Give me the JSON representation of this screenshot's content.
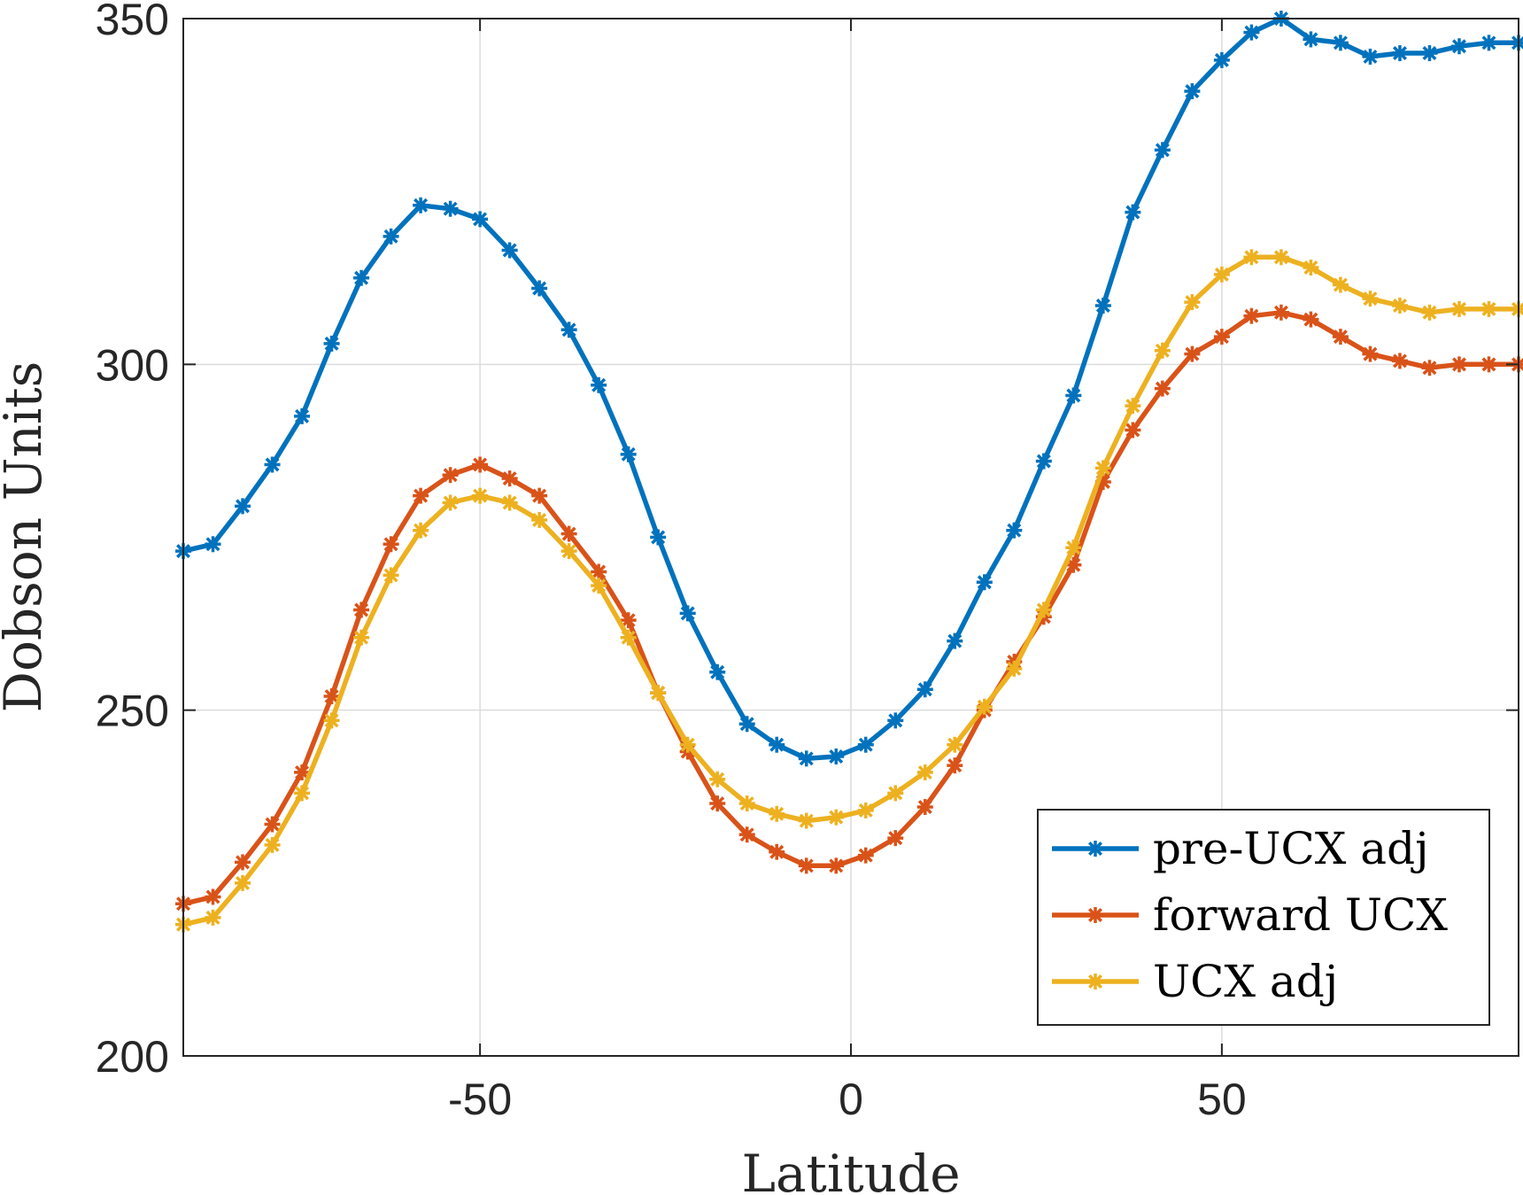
{
  "chart_data": {
    "type": "line",
    "xlabel": "Latitude",
    "ylabel": "Dobson Units",
    "xlim": [
      -90,
      90
    ],
    "ylim": [
      200,
      350
    ],
    "xticks": [
      -50,
      0,
      50
    ],
    "yticks": [
      200,
      250,
      300,
      350
    ],
    "grid": true,
    "legend_position": "bottom-right",
    "x": [
      -90,
      -86,
      -82,
      -78,
      -74,
      -70,
      -66,
      -62,
      -58,
      -54,
      -50,
      -46,
      -42,
      -38,
      -34,
      -30,
      -26,
      -22,
      -18,
      -14,
      -10,
      -6,
      -2,
      2,
      6,
      10,
      14,
      18,
      22,
      26,
      30,
      34,
      38,
      42,
      46,
      50,
      54,
      58,
      62,
      66,
      70,
      74,
      78,
      82,
      86,
      90
    ],
    "series": [
      {
        "name": "pre-UCX adj",
        "color": "#0072BD",
        "values": [
          273,
          274,
          279.5,
          285.5,
          292.5,
          303,
          312.5,
          318.5,
          323,
          322.5,
          321,
          316.5,
          311,
          305,
          297,
          287,
          275,
          264,
          255.5,
          248,
          245,
          243,
          243.3,
          245,
          248.5,
          253,
          260,
          268.5,
          276,
          286,
          295.5,
          308.5,
          322,
          331,
          339.5,
          344,
          348,
          350,
          347,
          346.5,
          344.5,
          345,
          345,
          346,
          346.5,
          346.5
        ]
      },
      {
        "name": "forward UCX",
        "color": "#D95319",
        "values": [
          222,
          223,
          228,
          233.5,
          241,
          252,
          264.5,
          274,
          281,
          284,
          285.5,
          283.5,
          281,
          275.5,
          270,
          263,
          252.5,
          244,
          236.5,
          232,
          229.5,
          227.5,
          227.5,
          229,
          231.5,
          236,
          242,
          250,
          257,
          263.5,
          271,
          283,
          290.5,
          296.5,
          301.5,
          304,
          307,
          307.5,
          306.5,
          304,
          301.5,
          300.5,
          299.5,
          300,
          300,
          300
        ]
      },
      {
        "name": "UCX adj",
        "color": "#EDB120",
        "values": [
          219,
          220,
          225,
          230.5,
          238,
          248.5,
          260.5,
          269.5,
          276,
          280,
          281,
          280,
          277.5,
          273,
          268,
          260.5,
          252.5,
          245,
          240,
          236.5,
          235,
          234,
          234.5,
          235.5,
          238,
          241,
          245,
          250.5,
          256,
          264.5,
          273.5,
          285,
          294,
          302,
          309,
          313,
          315.5,
          315.5,
          314,
          311.5,
          309.5,
          308.5,
          307.5,
          308,
          308,
          308
        ]
      }
    ]
  }
}
